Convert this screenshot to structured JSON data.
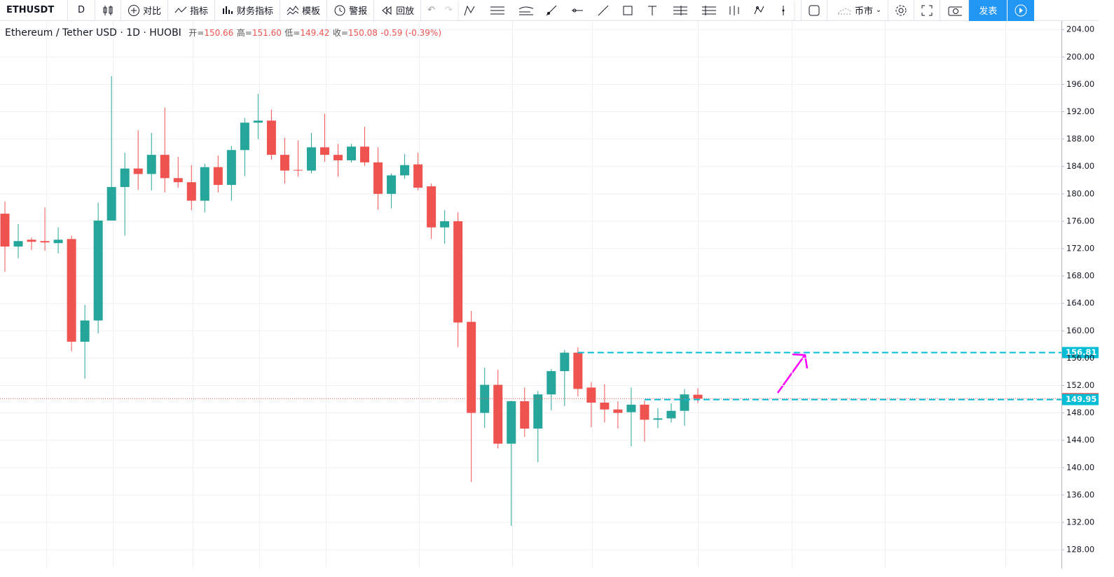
{
  "toolbar": {
    "symbol": "ETHUSDT",
    "interval": "D",
    "compare": "对比",
    "indicators": "指标",
    "financials": "财务指标",
    "templates": "模板",
    "alert": "警报",
    "replay": "回放",
    "market": "币市",
    "publish": "发表"
  },
  "legend": {
    "name": "Ethereum / Tether USD · 1D · HUOBI",
    "open_label": "开=",
    "open": "150.66",
    "high_label": "高=",
    "high": "151.60",
    "low_label": "低=",
    "low": "149.42",
    "close_label": "收=",
    "close": "150.08",
    "change": "-0.59 (-0.39%)"
  },
  "chart_data": {
    "type": "candlestick",
    "up_color": "#26a69a",
    "down_color": "#ef5350",
    "grid": true,
    "ylim": [
      125.2,
      205.2
    ],
    "yticks": [
      {
        "value": 128,
        "label": "128.00"
      },
      {
        "value": 132,
        "label": "132.00"
      },
      {
        "value": 136,
        "label": "136.00"
      },
      {
        "value": 140,
        "label": "140.00"
      },
      {
        "value": 144,
        "label": "144.00"
      },
      {
        "value": 148,
        "label": "148.00"
      },
      {
        "value": 152,
        "label": "152.00"
      },
      {
        "value": 156,
        "label": "156.00"
      },
      {
        "value": 160,
        "label": "160.00"
      },
      {
        "value": 164,
        "label": "164.00"
      },
      {
        "value": 168,
        "label": "168.00"
      },
      {
        "value": 172,
        "label": "172.00"
      },
      {
        "value": 176,
        "label": "176.00"
      },
      {
        "value": 180,
        "label": "180.00"
      },
      {
        "value": 184,
        "label": "184.00"
      },
      {
        "value": 188,
        "label": "188.00"
      },
      {
        "value": 192,
        "label": "192.00"
      },
      {
        "value": 196,
        "label": "196.00"
      },
      {
        "value": 200,
        "label": "200.00"
      },
      {
        "value": 204,
        "label": "204.00"
      }
    ],
    "open": [
      177.1,
      172.3,
      173.3,
      173.1,
      172.8,
      173.4,
      158.4,
      161.5,
      176.1,
      181.0,
      183.7,
      182.9,
      185.7,
      182.3,
      181.7,
      179.0,
      183.9,
      181.3,
      186.4,
      190.4,
      190.7,
      185.7,
      183.5,
      183.4,
      186.8,
      185.7,
      184.9,
      186.9,
      184.6,
      180.0,
      182.7,
      184.3,
      181.1,
      175.1,
      176.0,
      161.3,
      148.0,
      152.1,
      143.5,
      149.7,
      145.7,
      150.7,
      154.1,
      156.8,
      151.7,
      149.5,
      148.5,
      148.1,
      149.2,
      147.0,
      147.2,
      148.3,
      150.66
    ],
    "high": [
      178.9,
      175.6,
      173.6,
      178.0,
      175.1,
      173.9,
      163.8,
      178.7,
      197.2,
      186.0,
      189.3,
      188.9,
      192.6,
      185.4,
      184.2,
      184.4,
      185.6,
      187.0,
      191.1,
      194.6,
      192.3,
      188.2,
      187.8,
      188.9,
      191.7,
      187.3,
      187.3,
      189.8,
      186.8,
      183.0,
      185.8,
      186.0,
      181.5,
      177.6,
      177.3,
      162.9,
      154.6,
      154.3,
      149.8,
      151.7,
      151.2,
      154.4,
      157.2,
      157.6,
      152.5,
      152.2,
      149.7,
      151.7,
      149.8,
      148.7,
      149.4,
      151.5,
      151.6
    ],
    "low": [
      168.6,
      170.6,
      171.8,
      171.7,
      171.3,
      157.0,
      153.0,
      159.6,
      176.1,
      173.9,
      180.6,
      180.5,
      180.2,
      180.9,
      177.6,
      177.3,
      180.2,
      179.0,
      182.6,
      188.0,
      185.0,
      181.5,
      182.5,
      183.0,
      184.7,
      182.5,
      184.6,
      184.1,
      177.7,
      177.9,
      182.2,
      180.5,
      173.4,
      172.7,
      157.6,
      137.9,
      145.8,
      142.8,
      131.5,
      144.5,
      140.8,
      148.4,
      149.0,
      150.4,
      145.9,
      146.6,
      145.7,
      143.1,
      143.8,
      145.8,
      146.6,
      146.1,
      149.42
    ],
    "close": [
      172.3,
      173.1,
      173.0,
      172.9,
      173.3,
      158.4,
      161.5,
      176.1,
      181.0,
      183.7,
      182.9,
      185.7,
      182.3,
      181.7,
      179.0,
      183.9,
      181.3,
      186.4,
      190.4,
      190.7,
      185.7,
      183.4,
      183.4,
      186.8,
      185.7,
      184.9,
      186.9,
      184.6,
      180.0,
      182.7,
      184.2,
      180.9,
      175.1,
      176.0,
      161.2,
      148.0,
      152.1,
      143.5,
      149.7,
      145.7,
      150.7,
      154.1,
      156.8,
      151.5,
      149.5,
      148.5,
      148.0,
      149.2,
      147.0,
      147.2,
      148.3,
      150.7,
      150.08
    ],
    "lines": [
      {
        "value": 156.81,
        "color": "#00bcd4",
        "style": "dashed",
        "start": 43
      },
      {
        "value": 150.08,
        "color": "#ef5350",
        "style": "dotted",
        "start": 0
      },
      {
        "value": 149.95,
        "color": "#00bcd4",
        "style": "dashed",
        "start": 48
      }
    ]
  }
}
